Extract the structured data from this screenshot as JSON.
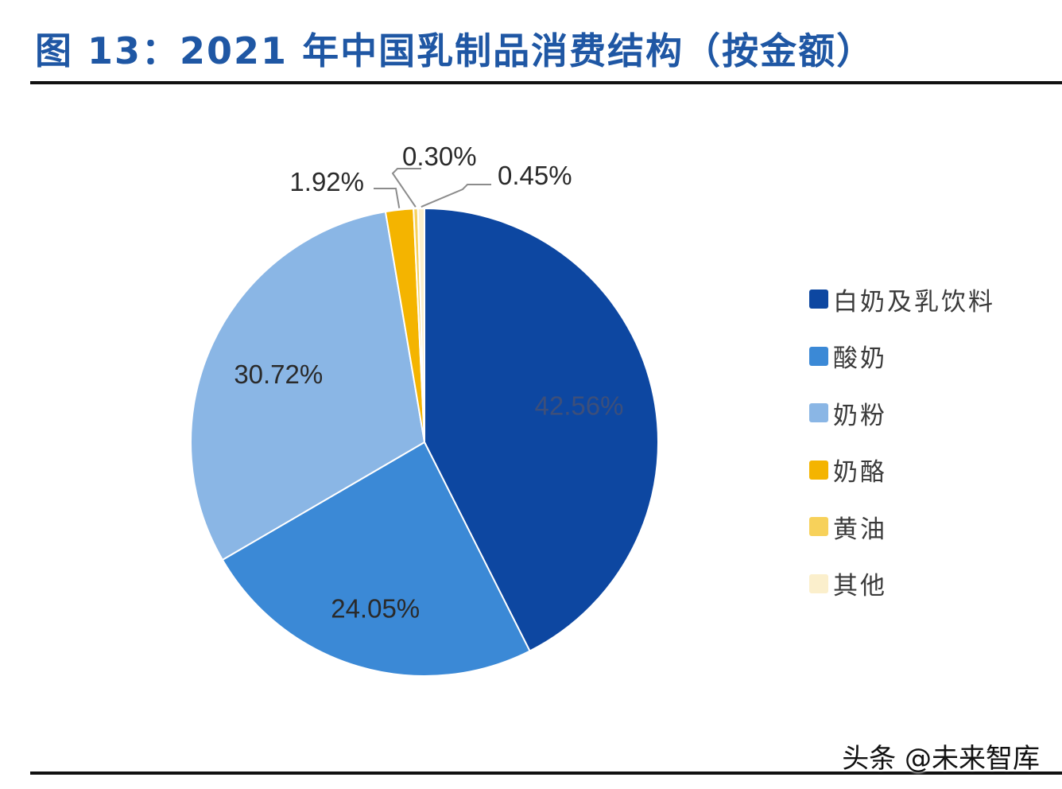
{
  "chart_data": {
    "type": "pie",
    "title": "图 13：2021 年中国乳制品消费结构（按金额）",
    "legend_position": "right",
    "start_angle": "12 o'clock",
    "direction": "clockwise",
    "slices": [
      {
        "label": "白奶及乳饮料",
        "value": 42.56,
        "display": "42.56%",
        "color": "#0d47a1",
        "text_color": "#3d4f7a"
      },
      {
        "label": "酸奶",
        "value": 24.05,
        "display": "24.05%",
        "color": "#3b89d6",
        "text_color": "#2a2a2a"
      },
      {
        "label": "奶粉",
        "value": 30.72,
        "display": "30.72%",
        "color": "#8ab6e5",
        "text_color": "#2a2a2a"
      },
      {
        "label": "奶酪",
        "value": 1.92,
        "display": "1.92%",
        "color": "#f4b400",
        "text_color": "#2a2a2a"
      },
      {
        "label": "黄油",
        "value": 0.3,
        "display": "0.30%",
        "color": "#f7d15a",
        "text_color": "#2a2a2a"
      },
      {
        "label": "其他",
        "value": 0.45,
        "display": "0.45%",
        "color": "#fbefcc",
        "text_color": "#2a2a2a"
      }
    ]
  },
  "watermark": "头条 @未来智库"
}
